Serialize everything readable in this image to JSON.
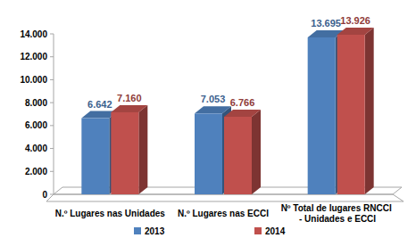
{
  "chart_data": {
    "type": "bar",
    "categories": [
      "N.º Lugares nas Unidades",
      "N.º Lugares nas ECCI",
      "Nº Total de lugares RNCCI - Unidades e ECCI"
    ],
    "series": [
      {
        "name": "2013",
        "color": "#4f81bd",
        "values": [
          6642,
          7053,
          13695
        ],
        "value_labels": [
          "6.642",
          "7.053",
          "13.695"
        ]
      },
      {
        "name": "2014",
        "color": "#c0504d",
        "values": [
          7160,
          6766,
          13926
        ],
        "value_labels": [
          "7.160",
          "6.766",
          "13.926"
        ]
      }
    ],
    "ylim": [
      0,
      14000
    ],
    "yticks": [
      0,
      {
        "value": 2000,
        "label": "2.000"
      },
      {
        "value": 4000,
        "label": "4.000"
      },
      {
        "value": 6000,
        "label": "6.000"
      },
      {
        "value": 8000,
        "label": "8.000"
      },
      {
        "value": 10000,
        "label": "10.000"
      },
      {
        "value": 12000,
        "label": "12.000"
      },
      {
        "value": 14000,
        "label": "14.000"
      }
    ],
    "data_labels": true,
    "legend": "bottom",
    "grid": false
  }
}
